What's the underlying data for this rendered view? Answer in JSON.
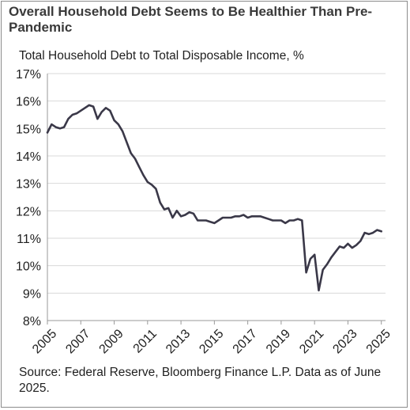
{
  "title": "Overall Household Debt Seems to Be Healthier Than Pre-Pandemic",
  "subtitle": "Total Household Debt to Total Disposable Income, %",
  "source": "Source: Federal Reserve, Bloomberg Finance L.P. Data as of June 2025.",
  "colors": {
    "line": "#3a3848",
    "grid": "#d9d9d9",
    "axis": "#999999"
  },
  "chart_data": {
    "type": "line",
    "title": "Overall Household Debt Seems to Be Healthier Than Pre-Pandemic",
    "xlabel": "",
    "ylabel": "Total Household Debt to Total Disposable Income, %",
    "xlim": [
      2005,
      2025.25
    ],
    "ylim": [
      8,
      17
    ],
    "yticks": [
      8,
      9,
      10,
      11,
      12,
      13,
      14,
      15,
      16,
      17
    ],
    "ytick_labels": [
      "8%",
      "9%",
      "10%",
      "11%",
      "12%",
      "13%",
      "14%",
      "15%",
      "16%",
      "17%"
    ],
    "xticks": [
      2005,
      2007,
      2009,
      2011,
      2013,
      2015,
      2017,
      2019,
      2021,
      2023,
      2025
    ],
    "xtick_labels": [
      "2005",
      "2007",
      "2009",
      "2011",
      "2013",
      "2015",
      "2017",
      "2019",
      "2021",
      "2023",
      "2025"
    ],
    "grid": "horizontal",
    "legend": "none",
    "series": [
      {
        "x": [
          2005.0,
          2005.25,
          2005.5,
          2005.75,
          2006.0,
          2006.25,
          2006.5,
          2006.75,
          2007.0,
          2007.25,
          2007.5,
          2007.75,
          2008.0,
          2008.25,
          2008.5,
          2008.75,
          2009.0,
          2009.25,
          2009.5,
          2009.75,
          2010.0,
          2010.25,
          2010.5,
          2010.75,
          2011.0,
          2011.25,
          2011.5,
          2011.75,
          2012.0,
          2012.25,
          2012.5,
          2012.75,
          2013.0,
          2013.25,
          2013.5,
          2013.75,
          2014.0,
          2014.25,
          2014.5,
          2014.75,
          2015.0,
          2015.25,
          2015.5,
          2015.75,
          2016.0,
          2016.25,
          2016.5,
          2016.75,
          2017.0,
          2017.25,
          2017.5,
          2017.75,
          2018.0,
          2018.25,
          2018.5,
          2018.75,
          2019.0,
          2019.25,
          2019.5,
          2019.75,
          2020.0,
          2020.25,
          2020.5,
          2020.75,
          2021.0,
          2021.25,
          2021.5,
          2021.75,
          2022.0,
          2022.25,
          2022.5,
          2022.75,
          2023.0,
          2023.25,
          2023.5,
          2023.75,
          2024.0,
          2024.25,
          2024.5,
          2024.75,
          2025.0
        ],
        "y": [
          14.85,
          15.15,
          15.05,
          15.0,
          15.05,
          15.35,
          15.5,
          15.55,
          15.65,
          15.75,
          15.85,
          15.8,
          15.35,
          15.6,
          15.75,
          15.65,
          15.3,
          15.15,
          14.9,
          14.5,
          14.1,
          13.9,
          13.6,
          13.3,
          13.05,
          12.95,
          12.8,
          12.3,
          12.05,
          12.1,
          11.75,
          12.0,
          11.8,
          11.85,
          11.95,
          11.9,
          11.65,
          11.65,
          11.65,
          11.6,
          11.55,
          11.65,
          11.75,
          11.75,
          11.75,
          11.8,
          11.8,
          11.85,
          11.75,
          11.8,
          11.8,
          11.8,
          11.75,
          11.7,
          11.65,
          11.65,
          11.65,
          11.55,
          11.65,
          11.65,
          11.7,
          11.65,
          9.75,
          10.25,
          10.4,
          9.1,
          9.85,
          10.05,
          10.3,
          10.5,
          10.7,
          10.65,
          10.8,
          10.65,
          10.75,
          10.9,
          11.2,
          11.15,
          11.2,
          11.3,
          11.25
        ]
      }
    ]
  }
}
